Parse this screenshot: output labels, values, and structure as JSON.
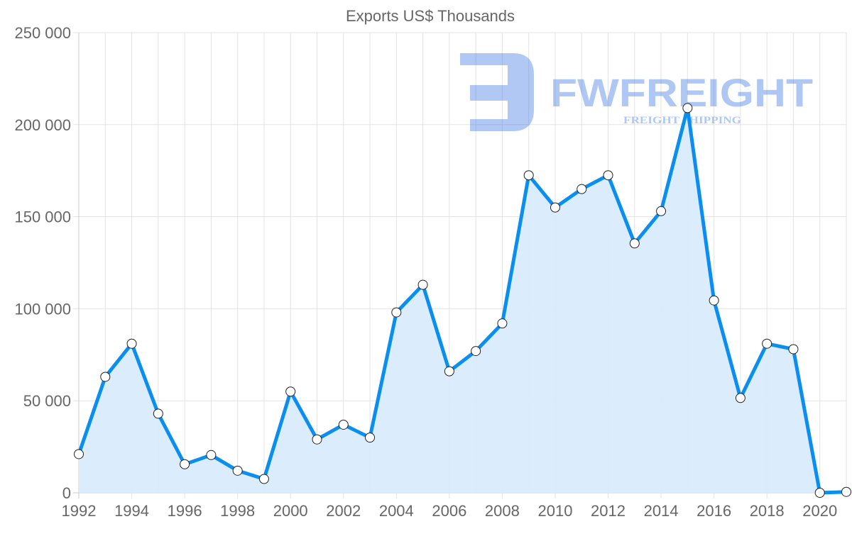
{
  "chart_data": {
    "type": "line",
    "title": "Exports US$ Thousands",
    "xlabel": "",
    "ylabel": "",
    "x": [
      1992,
      1993,
      1994,
      1995,
      1996,
      1997,
      1998,
      1999,
      2000,
      2001,
      2002,
      2003,
      2004,
      2005,
      2006,
      2007,
      2008,
      2009,
      2010,
      2011,
      2012,
      2013,
      2014,
      2015,
      2016,
      2017,
      2018,
      2019,
      2020,
      2021
    ],
    "series": [
      {
        "name": "Exports US$ Thousands",
        "values": [
          21000,
          63000,
          81000,
          43000,
          15500,
          20500,
          12000,
          7500,
          55000,
          29000,
          37000,
          30000,
          98000,
          113000,
          66000,
          77000,
          92000,
          172500,
          155000,
          165000,
          172500,
          135500,
          153000,
          209000,
          104500,
          51500,
          81000,
          78000,
          0,
          500
        ]
      }
    ],
    "ylim": [
      0,
      250000
    ],
    "y_ticks": [
      "0",
      "50 000",
      "100 000",
      "150 000",
      "200 000",
      "250 000"
    ],
    "y_tick_values": [
      0,
      50000,
      100000,
      150000,
      200000,
      250000
    ],
    "x_ticks": [
      "1992",
      "1994",
      "1996",
      "1998",
      "2000",
      "2002",
      "2004",
      "2006",
      "2008",
      "2010",
      "2012",
      "2014",
      "2016",
      "2018",
      "2020"
    ],
    "grid": true,
    "legend": "none",
    "fill": true,
    "colors": {
      "line": "#0a8ef0",
      "fill": "#d9ecfc",
      "grid": "#e3e3e3",
      "axis": "#cccccc",
      "text": "#666666",
      "marker_fill": "#ffffff",
      "marker_stroke": "#222222"
    }
  },
  "watermark": {
    "brand": "FWFREIGHT",
    "tagline": "FREIGHT SHIPPING",
    "color": "#2f6ee0"
  }
}
